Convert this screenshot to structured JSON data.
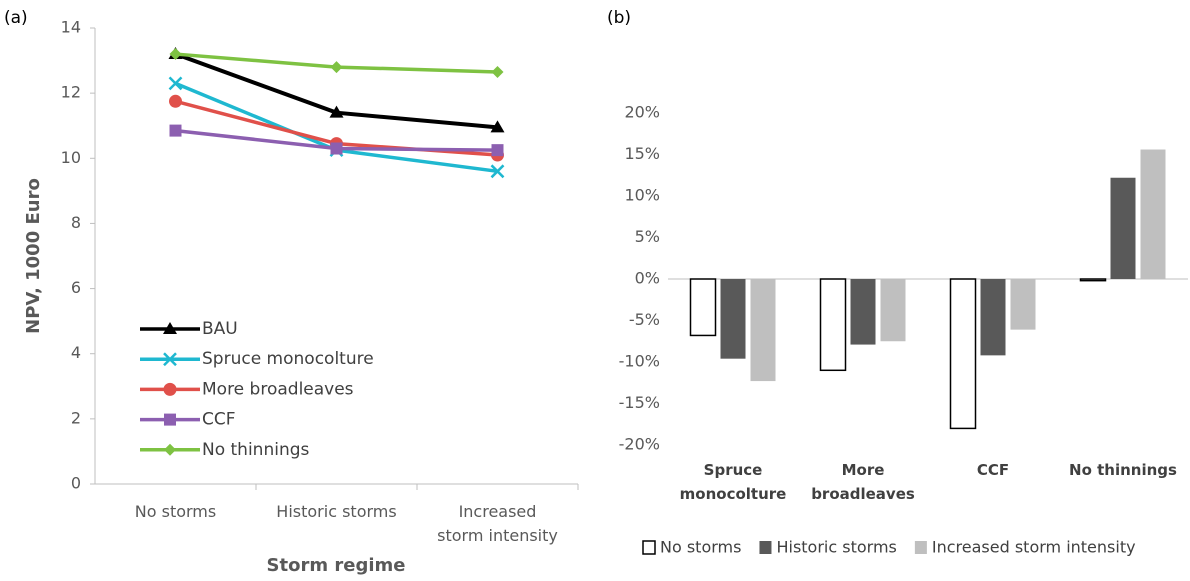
{
  "chart_data": [
    {
      "type": "line",
      "panel": "(a)",
      "ylabel": "NPV, 1000 Euro",
      "xlabel": "Storm regime",
      "categories": [
        "No storms",
        "Historic storms",
        "Increased storm intensity"
      ],
      "ylim": [
        0,
        14
      ],
      "yticks": [
        0,
        2,
        4,
        6,
        8,
        10,
        12,
        14
      ],
      "grid": false,
      "legend": "left",
      "series": [
        {
          "name": "BAU",
          "color": "#000000",
          "marker": "triangle",
          "values": [
            13.2,
            11.4,
            10.95
          ]
        },
        {
          "name": "Spruce monocolture",
          "color": "#1fb8d0",
          "marker": "x",
          "values": [
            12.3,
            10.25,
            9.6
          ]
        },
        {
          "name": "More broadleaves",
          "color": "#e0504a",
          "marker": "circle",
          "values": [
            11.75,
            10.45,
            10.1
          ]
        },
        {
          "name": "CCF",
          "color": "#8c5fb0",
          "marker": "square",
          "values": [
            10.85,
            10.3,
            10.25
          ]
        },
        {
          "name": "No thinnings",
          "color": "#7ec242",
          "marker": "diamond",
          "values": [
            13.2,
            12.8,
            12.65
          ]
        }
      ]
    },
    {
      "type": "bar",
      "panel": "(b)",
      "categories": [
        "Spruce monocolture",
        "More broadleaves",
        "CCF",
        "No thinnings"
      ],
      "ylim": [
        -20,
        20
      ],
      "yticks": [
        {
          "value": -20,
          "label": "-20%"
        },
        {
          "value": -15,
          "label": "-15%"
        },
        {
          "value": -10,
          "label": "-10%"
        },
        {
          "value": -5,
          "label": "-5%"
        },
        {
          "value": 0,
          "label": "0%"
        },
        {
          "value": 5,
          "label": "5%"
        },
        {
          "value": 10,
          "label": "10%"
        },
        {
          "value": 15,
          "label": "15%"
        },
        {
          "value": 20,
          "label": "20%"
        }
      ],
      "grid": false,
      "legend": "bottom",
      "series": [
        {
          "name": "No storms",
          "color": "#ffffff",
          "values": [
            -6.8,
            -11,
            -18,
            -0.2
          ]
        },
        {
          "name": "Historic storms",
          "color": "#595959",
          "values": [
            -9.6,
            -7.9,
            -9.2,
            12.2
          ]
        },
        {
          "name": "Increased storm intensity",
          "color": "#bfbfbf",
          "values": [
            -12.3,
            -7.5,
            -6.1,
            15.6
          ]
        }
      ]
    }
  ]
}
